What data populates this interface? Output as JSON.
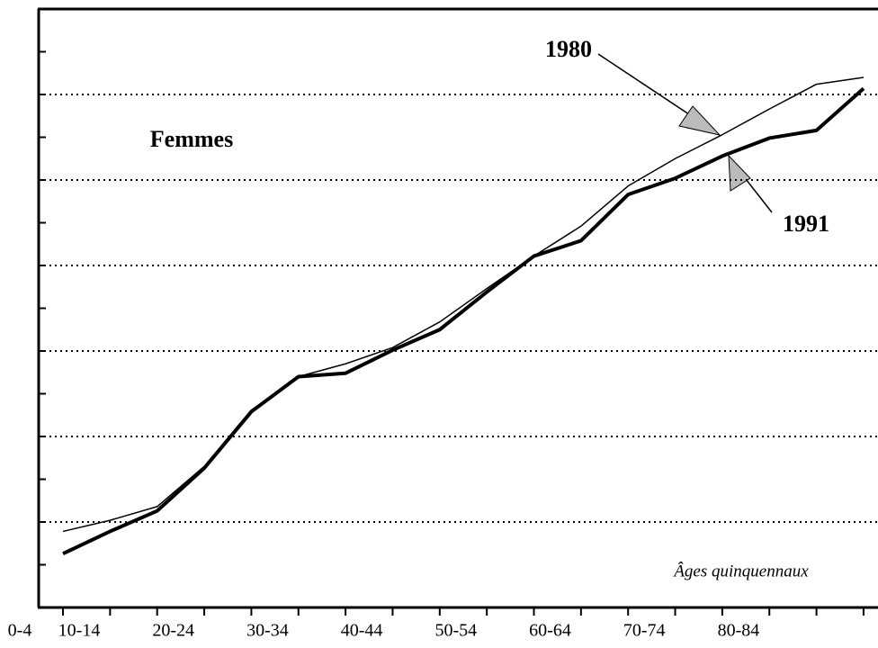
{
  "chart_data": {
    "type": "line",
    "annotations": [
      "Femmes",
      "1980",
      "1991"
    ],
    "x_axis_note": "Âges quinquennaux",
    "leading_category_label": "0-4",
    "categories": [
      "10-14",
      null,
      "20-24",
      null,
      "30-34",
      null,
      "40-44",
      null,
      "50-54",
      null,
      "60-64",
      null,
      "70-74",
      null,
      "80-84",
      null,
      null,
      null
    ],
    "series": [
      {
        "name": "1980",
        "color": "#000000",
        "width": 1.5,
        "values": [
          0.89,
          1.02,
          1.18,
          1.65,
          2.31,
          2.7,
          2.85,
          3.04,
          3.34,
          3.73,
          4.11,
          4.46,
          4.93,
          5.25,
          5.53,
          5.83,
          6.12,
          6.2
        ]
      },
      {
        "name": "1991",
        "color": "#000000",
        "width": 4,
        "values": [
          0.63,
          0.89,
          1.13,
          1.63,
          2.29,
          2.7,
          2.74,
          3.01,
          3.25,
          3.69,
          4.11,
          4.29,
          4.83,
          5.02,
          5.28,
          5.49,
          5.58,
          6.07
        ]
      }
    ],
    "ylim": [
      0,
      7
    ],
    "ygrid": [
      1,
      2,
      3,
      4,
      5,
      6
    ],
    "yminor": [
      0.5,
      1,
      1.5,
      2,
      2.5,
      3,
      3.5,
      4,
      4.5,
      5,
      5.5,
      6,
      6.5
    ],
    "grid": true
  }
}
